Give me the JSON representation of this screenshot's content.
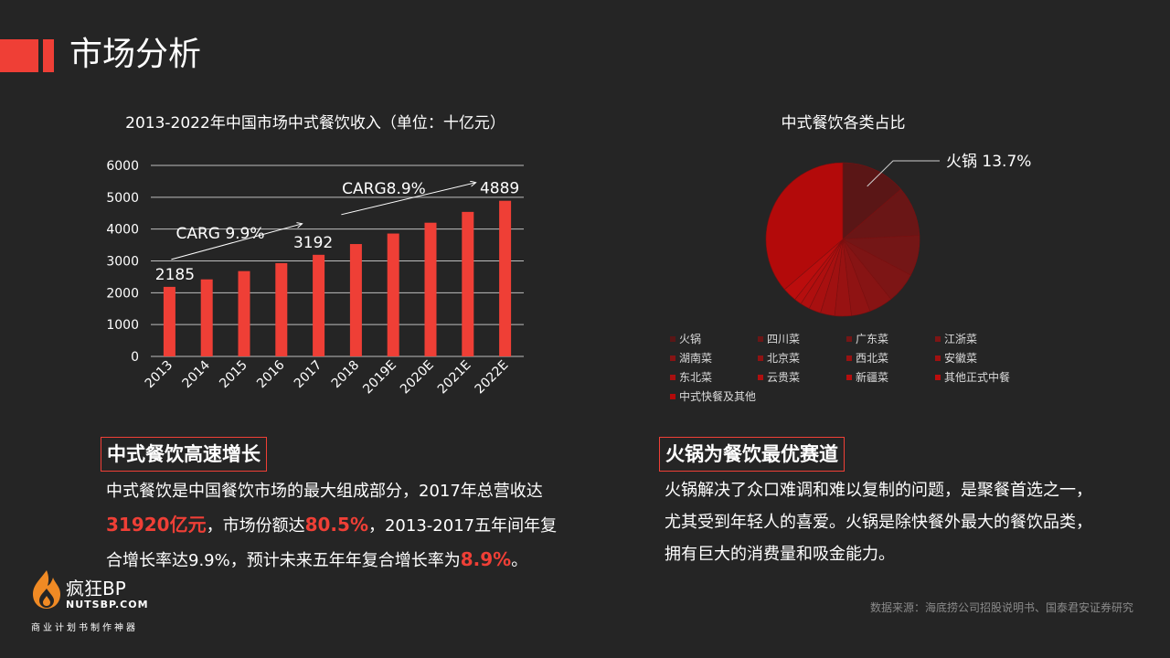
{
  "page": {
    "title": "市场分析"
  },
  "chart_data": [
    {
      "type": "bar",
      "title": "2013-2022年中国市场中式餐饮收入（单位：十亿元）",
      "categories": [
        "2013",
        "2014",
        "2015",
        "2016",
        "2017",
        "2018",
        "2019E",
        "2020E",
        "2021E",
        "2022E"
      ],
      "values": [
        2185,
        2420,
        2680,
        2930,
        3192,
        3530,
        3860,
        4200,
        4540,
        4889
      ],
      "ylim": [
        0,
        6000
      ],
      "yticks": [
        0,
        1000,
        2000,
        3000,
        4000,
        5000,
        6000
      ],
      "grid": true,
      "color": "#ef3f36",
      "labeled_values": [
        "2185",
        "3192",
        "4889"
      ],
      "annotations": [
        "CARG 9.9%",
        "CARG8.9%"
      ]
    },
    {
      "type": "pie",
      "title": "中式餐饮各类占比",
      "callout": "火锅 13.7%",
      "categories": [
        "火锅",
        "四川菜",
        "广东菜",
        "江浙菜",
        "湖南菜",
        "北京菜",
        "西北菜",
        "安徽菜",
        "东北菜",
        "云贵菜",
        "新疆菜",
        "其他正式中餐",
        "中式快餐及其他"
      ],
      "values": [
        13.7,
        10.5,
        8.5,
        6.5,
        5.0,
        4.0,
        3.5,
        3.0,
        2.5,
        2.0,
        1.5,
        3.0,
        36.3
      ],
      "colors": [
        "#5a1616",
        "#6a1616",
        "#741616",
        "#7d1515",
        "#871414",
        "#8f1313",
        "#981212",
        "#a01111",
        "#a81010",
        "#af0f0f",
        "#b50e0e",
        "#bb0d0d",
        "#b30a0a"
      ],
      "legend_position": "bottom"
    }
  ],
  "left_section": {
    "tag": "中式餐饮高速增长",
    "p1": "中式餐饮是中国餐饮市场的最大组成部分，2017年总营收达",
    "hl1": "31920亿元",
    "p2": "，市场份额达",
    "hl2": "80.5%",
    "p3": "，2013-2017五年间年复",
    "p4": "合增长率达9.9%，预计未来五年年复合增长率为",
    "hl3": "8.9%",
    "p5": "。"
  },
  "right_section": {
    "tag": "火锅为餐饮最优赛道",
    "line1": "火锅解决了众口难调和难以复制的问题，是聚餐首选之一，",
    "line2": "尤其受到年轻人的喜爱。火锅是除快餐外最大的餐饮品类，",
    "line3": "拥有巨大的消费量和吸金能力。"
  },
  "source": "数据来源：海底捞公司招股说明书、国泰君安证券研究",
  "brand": {
    "name": "疯狂BP",
    "url": "NUTSBP.COM",
    "slogan": "商业计划书制作神器"
  }
}
